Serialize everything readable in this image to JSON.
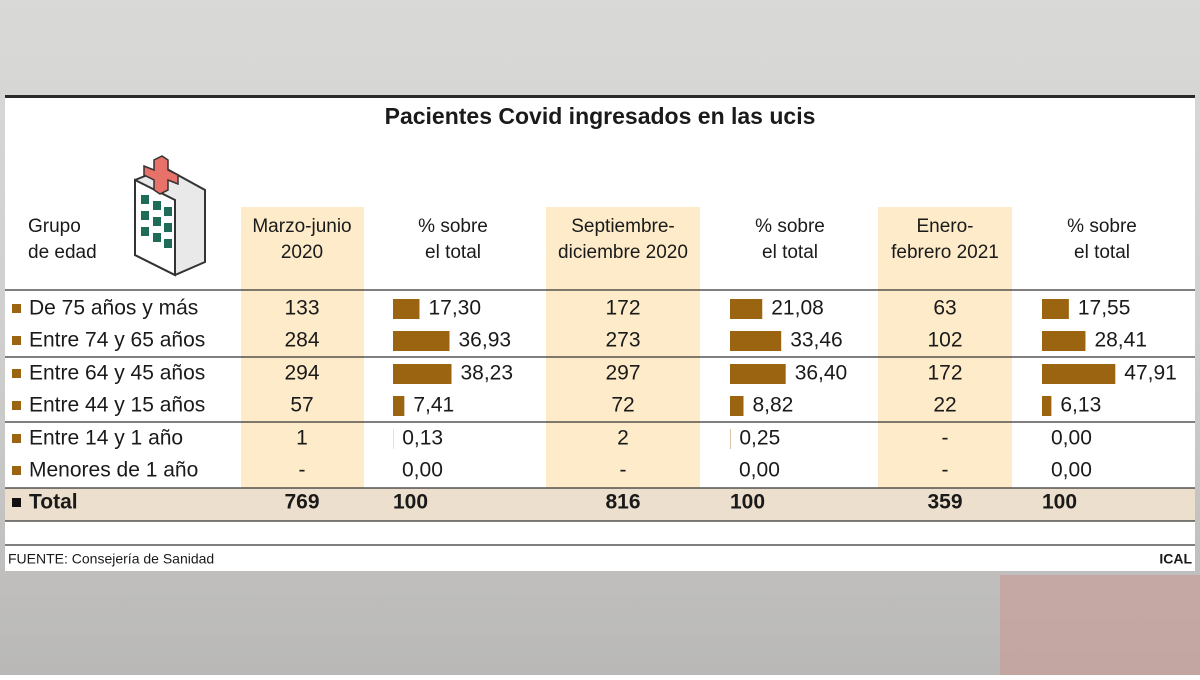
{
  "title": "Pacientes Covid ingresados en las ucis",
  "header": {
    "group": [
      "Grupo",
      "de edad"
    ],
    "periods": [
      {
        "name": [
          "Marzo-junio",
          "2020"
        ],
        "pct": [
          "% sobre",
          "el total"
        ]
      },
      {
        "name": [
          "Septiembre-",
          "diciembre 2020"
        ],
        "pct": [
          "% sobre",
          "el total"
        ]
      },
      {
        "name": [
          "Enero-",
          "febrero 2021"
        ],
        "pct": [
          "% sobre",
          "el total"
        ]
      }
    ]
  },
  "rows": [
    {
      "label": "De 75 años y más",
      "cells": [
        {
          "count": "133",
          "pct": {
            "value": 17.3,
            "label": "17,30"
          }
        },
        {
          "count": "172",
          "pct": {
            "value": 21.08,
            "label": "21,08"
          }
        },
        {
          "count": "63",
          "pct": {
            "value": 17.55,
            "label": "17,55"
          }
        }
      ]
    },
    {
      "label": "Entre 74 y 65 años",
      "cells": [
        {
          "count": "284",
          "pct": {
            "value": 36.93,
            "label": "36,93"
          }
        },
        {
          "count": "273",
          "pct": {
            "value": 33.46,
            "label": "33,46"
          }
        },
        {
          "count": "102",
          "pct": {
            "value": 28.41,
            "label": "28,41"
          }
        }
      ]
    },
    {
      "label": "Entre 64 y 45 años",
      "cells": [
        {
          "count": "294",
          "pct": {
            "value": 38.23,
            "label": "38,23"
          }
        },
        {
          "count": "297",
          "pct": {
            "value": 36.4,
            "label": "36,40"
          }
        },
        {
          "count": "172",
          "pct": {
            "value": 47.91,
            "label": "47,91"
          }
        }
      ]
    },
    {
      "label": "Entre 44 y 15 años",
      "cells": [
        {
          "count": "57",
          "pct": {
            "value": 7.41,
            "label": "7,41"
          }
        },
        {
          "count": "72",
          "pct": {
            "value": 8.82,
            "label": "8,82"
          }
        },
        {
          "count": "22",
          "pct": {
            "value": 6.13,
            "label": "6,13"
          }
        }
      ]
    },
    {
      "label": "Entre 14 y 1 año",
      "cells": [
        {
          "count": "1",
          "pct": {
            "value": 0.13,
            "label": "0,13"
          }
        },
        {
          "count": "2",
          "pct": {
            "value": 0.25,
            "label": "0,25"
          }
        },
        {
          "count": "-",
          "pct": {
            "value": 0,
            "label": "0,00"
          }
        }
      ]
    },
    {
      "label": "Menores de 1 año",
      "cells": [
        {
          "count": "-",
          "pct": {
            "value": 0,
            "label": "0,00"
          }
        },
        {
          "count": "-",
          "pct": {
            "value": 0,
            "label": "0,00"
          }
        },
        {
          "count": "-",
          "pct": {
            "value": 0,
            "label": "0,00"
          }
        }
      ]
    }
  ],
  "total": {
    "label": "Total",
    "cells": [
      {
        "count": "769",
        "pct": "100"
      },
      {
        "count": "816",
        "pct": "100"
      },
      {
        "count": "359",
        "pct": "100"
      }
    ]
  },
  "source": "FUENTE: Consejería de Sanidad",
  "credit": "ICAL",
  "bar_color": "#9a6410"
}
